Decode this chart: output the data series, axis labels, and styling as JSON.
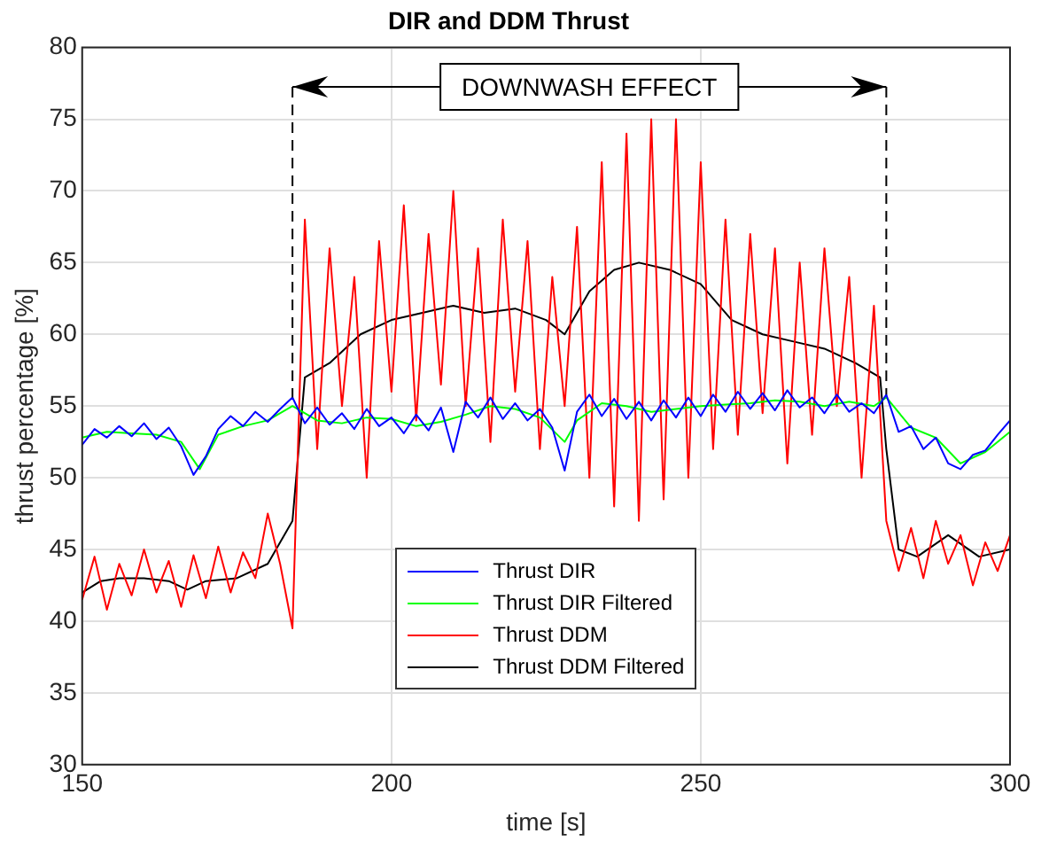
{
  "chart_data": {
    "type": "line",
    "title": "DIR and DDM Thrust",
    "xlabel": "time [s]",
    "ylabel": "thrust percentage [%]",
    "x": [
      150,
      152,
      154,
      156,
      158,
      160,
      162,
      164,
      166,
      168,
      170,
      172,
      174,
      176,
      178,
      180,
      182,
      184,
      186,
      188,
      190,
      192,
      194,
      196,
      198,
      200,
      202,
      204,
      206,
      208,
      210,
      212,
      214,
      216,
      218,
      220,
      222,
      224,
      226,
      228,
      230,
      232,
      234,
      236,
      238,
      240,
      242,
      244,
      246,
      248,
      250,
      252,
      254,
      256,
      258,
      260,
      262,
      264,
      266,
      268,
      270,
      272,
      274,
      276,
      278,
      280,
      282,
      284,
      286,
      288,
      290,
      292,
      294,
      296,
      298,
      300
    ],
    "series": [
      {
        "name": "Thrust DIR",
        "color": "#0000ff",
        "values": [
          52.3,
          53.4,
          52.8,
          53.6,
          52.9,
          53.8,
          52.7,
          53.5,
          52.2,
          50.2,
          51.5,
          53.4,
          54.3,
          53.6,
          54.6,
          53.9,
          54.8,
          55.6,
          53.8,
          54.9,
          53.7,
          54.5,
          53.4,
          54.8,
          53.6,
          54.2,
          53.1,
          54.4,
          53.3,
          54.9,
          51.8,
          55.3,
          54.2,
          55.6,
          54.1,
          55.2,
          54.0,
          54.8,
          53.5,
          50.5,
          54.6,
          55.8,
          54.3,
          55.5,
          54.1,
          55.3,
          54.0,
          55.4,
          54.2,
          55.6,
          54.3,
          55.8,
          54.6,
          56.0,
          54.8,
          55.9,
          54.7,
          56.1,
          54.9,
          55.6,
          54.5,
          55.8,
          54.6,
          55.2,
          54.5,
          55.8,
          53.2,
          53.6,
          52.0,
          52.8,
          51.0,
          50.6,
          51.6,
          51.9,
          53.0,
          54.0
        ]
      },
      {
        "name": "Thrust DIR Filtered",
        "color": "#00ff00",
        "x": [
          150,
          154,
          158,
          162,
          166,
          169,
          172,
          176,
          180,
          184,
          188,
          192,
          196,
          200,
          204,
          208,
          212,
          216,
          220,
          224,
          228,
          230,
          234,
          238,
          242,
          246,
          250,
          254,
          258,
          262,
          266,
          270,
          274,
          278,
          280,
          284,
          288,
          292,
          296,
          300
        ],
        "values": [
          52.8,
          53.2,
          53.1,
          53.0,
          52.5,
          50.6,
          53.0,
          53.6,
          54.0,
          55.0,
          54.0,
          53.8,
          54.2,
          54.1,
          53.6,
          53.9,
          54.4,
          55.0,
          54.8,
          54.2,
          52.5,
          54.0,
          55.2,
          55.0,
          54.6,
          54.8,
          55.0,
          55.1,
          55.2,
          55.4,
          55.3,
          55.0,
          55.3,
          55.0,
          55.6,
          53.5,
          52.8,
          51.0,
          51.8,
          53.2
        ]
      },
      {
        "name": "Thrust DDM",
        "color": "#ff0000",
        "values": [
          41.5,
          44.5,
          40.8,
          44.0,
          41.8,
          45.0,
          42.0,
          44.2,
          41.0,
          44.6,
          41.6,
          45.2,
          42.0,
          44.8,
          43.0,
          47.5,
          44.0,
          39.5,
          68.0,
          52.0,
          66.0,
          55.0,
          64.0,
          50.0,
          66.5,
          56.0,
          69.0,
          54.0,
          67.0,
          56.5,
          70.0,
          55.0,
          66.0,
          52.5,
          68.0,
          56.0,
          66.5,
          52.0,
          64.0,
          55.0,
          67.5,
          50.0,
          72.0,
          48.0,
          74.0,
          47.0,
          75.0,
          48.5,
          75.0,
          50.0,
          72.0,
          52.0,
          68.0,
          53.0,
          67.0,
          54.5,
          66.0,
          51.0,
          65.0,
          53.0,
          66.0,
          55.0,
          64.0,
          50.0,
          62.0,
          47.0,
          43.5,
          46.5,
          43.0,
          47.0,
          44.0,
          46.0,
          42.5,
          45.5,
          43.5,
          46.0
        ]
      },
      {
        "name": "Thrust DDM Filtered",
        "color": "#000000",
        "x": [
          150,
          153,
          156,
          160,
          164,
          167,
          170,
          175,
          180,
          182,
          184,
          185,
          186,
          190,
          195,
          200,
          205,
          210,
          215,
          220,
          225,
          228,
          232,
          236,
          240,
          245,
          250,
          255,
          260,
          265,
          270,
          275,
          279,
          280,
          282,
          285,
          290,
          295,
          300
        ],
        "values": [
          42.0,
          42.8,
          43.0,
          43.0,
          42.8,
          42.2,
          42.8,
          43.0,
          44.0,
          45.5,
          47.0,
          52,
          57.0,
          58.0,
          60.0,
          61.0,
          61.5,
          62.0,
          61.5,
          61.8,
          61.0,
          60.0,
          63.0,
          64.5,
          65.0,
          64.5,
          63.5,
          61.0,
          60.0,
          59.5,
          59.0,
          58.0,
          57.0,
          52.0,
          45.0,
          44.5,
          46.0,
          44.5,
          45.0
        ]
      }
    ],
    "xlim": [
      150,
      300
    ],
    "xticks": [
      150,
      200,
      250,
      300
    ],
    "ylim": [
      30,
      80
    ],
    "yticks": [
      30,
      35,
      40,
      45,
      50,
      55,
      60,
      65,
      70,
      75,
      80
    ],
    "grid": true,
    "legend": "bottom",
    "marker": "none",
    "line_style": "solid",
    "ref_lines": [
      {
        "axis": "x",
        "value": 184,
        "line_style": "dashed"
      },
      {
        "axis": "x",
        "value": 280,
        "line_style": "dashed"
      }
    ],
    "annotations": [
      "DOWNWASH EFFECT"
    ]
  }
}
